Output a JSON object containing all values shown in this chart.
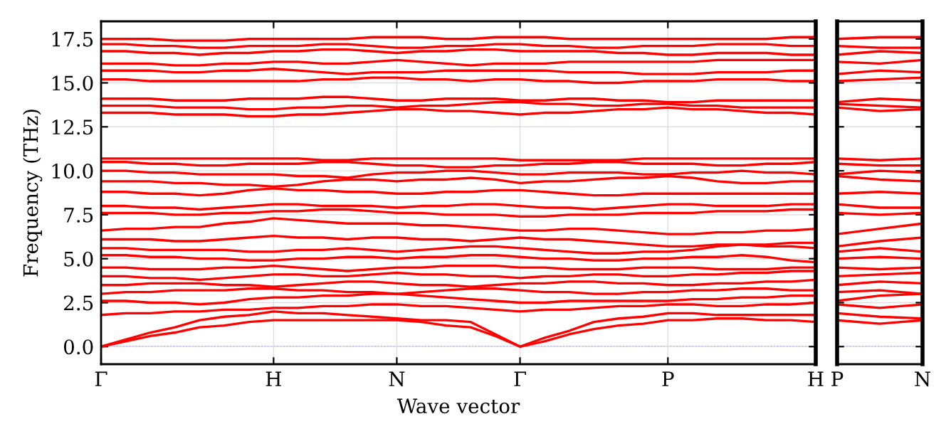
{
  "chart_data": [
    {
      "type": "line",
      "xlabel": "Wave vector",
      "ylabel": "Frequency (THz)",
      "grid": true,
      "line_style": "solid",
      "categories": [
        "Γ",
        null,
        null,
        null,
        null,
        null,
        null,
        "H",
        null,
        null,
        null,
        null,
        "N",
        null,
        null,
        null,
        null,
        "Γ",
        null,
        null,
        null,
        null,
        null,
        "P",
        null,
        null,
        null,
        null,
        null,
        "H"
      ],
      "ylim": [
        -1,
        18.5
      ],
      "yticks": [
        {
          "value": 0,
          "label": "0.0"
        },
        {
          "value": 2.5,
          "label": "2.5"
        },
        {
          "value": 5,
          "label": "5.0"
        },
        {
          "value": 7.5,
          "label": "7.5"
        },
        {
          "value": 10,
          "label": "10.0"
        },
        {
          "value": 12.5,
          "label": "12.5"
        },
        {
          "value": 15,
          "label": "15.0"
        },
        {
          "value": 17.5,
          "label": "17.5"
        }
      ],
      "ref_lines": [
        {
          "axis": "y",
          "value": 0,
          "color": "#0000ff",
          "line_style": "dotted"
        }
      ],
      "series": [
        {
          "color": "#ff0000",
          "values": [
            0,
            0.3,
            0.6,
            0.8,
            1.1,
            1.2,
            1.4,
            1.5,
            1.5,
            1.5,
            1.5,
            1.5,
            1.5,
            1.4,
            1.2,
            1.1,
            0.6,
            0,
            0.3,
            0.7,
            1.0,
            1.2,
            1.3,
            1.5,
            1.5,
            1.6,
            1.6,
            1.5,
            1.5,
            1.4
          ]
        },
        {
          "color": "#ff0000",
          "values": [
            0,
            0.4,
            0.8,
            1.1,
            1.5,
            1.7,
            1.8,
            2.0,
            1.9,
            1.9,
            1.8,
            1.7,
            1.6,
            1.5,
            1.5,
            1.4,
            0.7,
            0,
            0.5,
            0.9,
            1.4,
            1.6,
            1.7,
            1.9,
            1.9,
            1.8,
            1.8,
            1.8,
            1.8,
            1.8
          ]
        },
        {
          "color": "#ff0000",
          "values": [
            1.8,
            1.9,
            1.9,
            2.0,
            2.0,
            2.1,
            2.1,
            2.2,
            2.2,
            2.3,
            2.3,
            2.4,
            2.4,
            2.3,
            2.3,
            2.2,
            2.1,
            2.0,
            2.1,
            2.1,
            2.2,
            2.3,
            2.3,
            2.4,
            2.4,
            2.3,
            2.3,
            2.4,
            2.4,
            2.5
          ]
        },
        {
          "color": "#ff0000",
          "values": [
            2.6,
            2.6,
            2.5,
            2.5,
            2.4,
            2.5,
            2.7,
            2.8,
            2.8,
            2.9,
            2.9,
            3.0,
            3.0,
            2.9,
            2.8,
            2.7,
            2.6,
            2.5,
            2.5,
            2.6,
            2.6,
            2.6,
            2.6,
            2.6,
            2.7,
            2.7,
            2.8,
            2.8,
            2.9,
            2.9
          ]
        },
        {
          "color": "#ff0000",
          "values": [
            3.0,
            3.1,
            3.1,
            3.2,
            3.2,
            3.2,
            3.3,
            3.3,
            3.2,
            3.2,
            3.1,
            3.1,
            3.0,
            3.1,
            3.2,
            3.3,
            3.3,
            3.2,
            3.1,
            3.1,
            3.0,
            3.0,
            3.1,
            3.1,
            3.2,
            3.2,
            3.3,
            3.3,
            3.2,
            3.2
          ]
        },
        {
          "color": "#ff0000",
          "values": [
            3.5,
            3.5,
            3.6,
            3.6,
            3.6,
            3.5,
            3.5,
            3.4,
            3.5,
            3.6,
            3.7,
            3.7,
            3.6,
            3.5,
            3.5,
            3.4,
            3.5,
            3.6,
            3.6,
            3.7,
            3.7,
            3.6,
            3.6,
            3.5,
            3.5,
            3.6,
            3.6,
            3.7,
            3.7,
            3.8
          ]
        },
        {
          "color": "#ff0000",
          "values": [
            4.0,
            4.0,
            3.9,
            3.9,
            3.8,
            3.9,
            4.0,
            4.1,
            4.1,
            4.0,
            4.0,
            4.1,
            4.2,
            4.1,
            4.1,
            4.0,
            4.0,
            3.9,
            4.0,
            4.0,
            4.1,
            4.1,
            4.0,
            4.0,
            4.1,
            4.1,
            4.2,
            4.2,
            4.3,
            4.3
          ]
        },
        {
          "color": "#ff0000",
          "values": [
            4.5,
            4.5,
            4.4,
            4.4,
            4.4,
            4.5,
            4.5,
            4.6,
            4.5,
            4.4,
            4.3,
            4.4,
            4.5,
            4.5,
            4.6,
            4.6,
            4.6,
            4.5,
            4.5,
            4.4,
            4.4,
            4.4,
            4.5,
            4.5,
            4.5,
            4.4,
            4.4,
            4.4,
            4.5,
            4.5
          ]
        },
        {
          "color": "#ff0000",
          "values": [
            5.2,
            5.2,
            5.1,
            5.1,
            5.0,
            5.0,
            4.9,
            4.9,
            5.0,
            5.0,
            5.1,
            5.1,
            5.0,
            5.1,
            5.1,
            5.2,
            5.2,
            5.1,
            5.0,
            5.0,
            4.9,
            4.9,
            5.0,
            5.0,
            5.1,
            5.1,
            5.2,
            5.1,
            4.9,
            4.8
          ]
        },
        {
          "color": "#ff0000",
          "values": [
            5.6,
            5.6,
            5.5,
            5.5,
            5.5,
            5.5,
            5.4,
            5.4,
            5.5,
            5.5,
            5.6,
            5.5,
            5.4,
            5.5,
            5.6,
            5.7,
            5.7,
            5.6,
            5.5,
            5.4,
            5.3,
            5.3,
            5.4,
            5.4,
            5.5,
            5.7,
            5.8,
            5.7,
            5.7,
            5.6
          ]
        },
        {
          "color": "#ff0000",
          "values": [
            6.1,
            6.1,
            6.1,
            6.0,
            6.0,
            6.1,
            6.2,
            6.3,
            6.2,
            6.2,
            6.1,
            6.2,
            6.2,
            6.1,
            6.1,
            6.0,
            6.1,
            6.2,
            6.1,
            6.1,
            6.0,
            5.9,
            5.8,
            5.7,
            5.7,
            5.8,
            5.8,
            5.8,
            5.9,
            5.9
          ]
        },
        {
          "color": "#ff0000",
          "values": [
            6.6,
            6.7,
            6.7,
            6.8,
            6.8,
            7.0,
            7.1,
            7.3,
            7.2,
            7.1,
            7.0,
            7.0,
            7.0,
            6.9,
            6.9,
            6.8,
            6.7,
            6.6,
            6.6,
            6.7,
            6.7,
            6.6,
            6.5,
            6.4,
            6.4,
            6.5,
            6.5,
            6.6,
            6.6,
            6.7
          ]
        },
        {
          "color": "#ff0000",
          "values": [
            7.6,
            7.6,
            7.6,
            7.5,
            7.5,
            7.6,
            7.6,
            7.7,
            7.7,
            7.8,
            7.8,
            7.7,
            7.6,
            7.6,
            7.5,
            7.5,
            7.5,
            7.4,
            7.4,
            7.5,
            7.5,
            7.5,
            7.6,
            7.6,
            7.6,
            7.7,
            7.7,
            7.7,
            7.8,
            7.8
          ]
        },
        {
          "color": "#ff0000",
          "values": [
            8.0,
            8.0,
            7.9,
            7.9,
            7.8,
            7.9,
            8.0,
            8.1,
            8.1,
            8.0,
            8.0,
            8.0,
            7.9,
            8.0,
            8.0,
            8.1,
            8.1,
            8.0,
            7.9,
            7.9,
            7.8,
            7.9,
            8.0,
            8.1,
            8.1,
            8.0,
            8.0,
            8.0,
            8.1,
            8.1
          ]
        },
        {
          "color": "#ff0000",
          "values": [
            8.8,
            8.8,
            8.7,
            8.7,
            8.6,
            8.7,
            8.9,
            9.0,
            8.9,
            8.9,
            8.8,
            8.8,
            8.7,
            8.7,
            8.8,
            8.8,
            8.9,
            8.9,
            8.8,
            8.7,
            8.6,
            8.6,
            8.7,
            8.7,
            8.7,
            8.7,
            8.7,
            8.7,
            8.7,
            8.7
          ]
        },
        {
          "color": "#ff0000",
          "values": [
            9.4,
            9.4,
            9.4,
            9.3,
            9.3,
            9.2,
            9.2,
            9.1,
            9.2,
            9.4,
            9.5,
            9.5,
            9.4,
            9.5,
            9.5,
            9.6,
            9.5,
            9.3,
            9.4,
            9.4,
            9.5,
            9.6,
            9.6,
            9.7,
            9.6,
            9.4,
            9.3,
            9.3,
            9.4,
            9.4
          ]
        },
        {
          "color": "#ff0000",
          "values": [
            10.0,
            10.0,
            9.9,
            9.9,
            9.8,
            9.8,
            9.8,
            9.8,
            9.7,
            9.7,
            9.6,
            9.8,
            9.9,
            9.9,
            10.0,
            10.0,
            9.9,
            9.8,
            9.8,
            9.9,
            9.9,
            9.9,
            9.8,
            9.8,
            9.9,
            9.9,
            10.0,
            9.9,
            9.9,
            9.8
          ]
        },
        {
          "color": "#ff0000",
          "values": [
            10.5,
            10.5,
            10.4,
            10.4,
            10.3,
            10.3,
            10.4,
            10.4,
            10.4,
            10.5,
            10.5,
            10.4,
            10.3,
            10.3,
            10.2,
            10.2,
            10.3,
            10.3,
            10.4,
            10.4,
            10.5,
            10.5,
            10.4,
            10.4,
            10.4,
            10.3,
            10.3,
            10.4,
            10.4,
            10.5
          ]
        },
        {
          "color": "#ff0000",
          "values": [
            10.7,
            10.7,
            10.7,
            10.7,
            10.7,
            10.7,
            10.7,
            10.7,
            10.7,
            10.6,
            10.6,
            10.7,
            10.7,
            10.7,
            10.7,
            10.7,
            10.7,
            10.6,
            10.6,
            10.6,
            10.6,
            10.6,
            10.7,
            10.7,
            10.7,
            10.7,
            10.7,
            10.7,
            10.7,
            10.7
          ]
        },
        {
          "color": "#ff0000",
          "values": [
            13.3,
            13.3,
            13.3,
            13.2,
            13.2,
            13.2,
            13.1,
            13.1,
            13.2,
            13.2,
            13.3,
            13.4,
            13.5,
            13.5,
            13.4,
            13.4,
            13.3,
            13.2,
            13.3,
            13.3,
            13.4,
            13.5,
            13.5,
            13.6,
            13.5,
            13.5,
            13.4,
            13.3,
            13.3,
            13.2
          ]
        },
        {
          "color": "#ff0000",
          "values": [
            13.7,
            13.7,
            13.7,
            13.6,
            13.6,
            13.6,
            13.5,
            13.5,
            13.6,
            13.6,
            13.7,
            13.7,
            13.6,
            13.7,
            13.7,
            13.8,
            13.9,
            13.9,
            13.8,
            13.8,
            13.7,
            13.7,
            13.8,
            13.8,
            13.7,
            13.7,
            13.6,
            13.6,
            13.6,
            13.6
          ]
        },
        {
          "color": "#ff0000",
          "values": [
            14.1,
            14.1,
            14.1,
            14.0,
            14.0,
            14.0,
            14.1,
            14.1,
            14.1,
            14.2,
            14.2,
            14.1,
            14.0,
            14.0,
            14.1,
            14.1,
            14.1,
            14.0,
            14.0,
            14.1,
            14.1,
            14.0,
            14.0,
            13.9,
            13.9,
            14.0,
            14.0,
            14.0,
            14.0,
            14.0
          ]
        },
        {
          "color": "#ff0000",
          "values": [
            15.2,
            15.2,
            15.1,
            15.1,
            15.1,
            15.1,
            15.1,
            15.1,
            15.1,
            15.2,
            15.2,
            15.3,
            15.3,
            15.2,
            15.2,
            15.1,
            15.2,
            15.2,
            15.1,
            15.1,
            15.0,
            15.0,
            15.1,
            15.1,
            15.1,
            15.2,
            15.2,
            15.2,
            15.1,
            15.1
          ]
        },
        {
          "color": "#ff0000",
          "values": [
            15.7,
            15.7,
            15.7,
            15.6,
            15.6,
            15.7,
            15.7,
            15.8,
            15.7,
            15.6,
            15.5,
            15.6,
            15.6,
            15.6,
            15.7,
            15.7,
            15.7,
            15.7,
            15.7,
            15.6,
            15.6,
            15.6,
            15.5,
            15.5,
            15.5,
            15.6,
            15.6,
            15.6,
            15.7,
            15.7
          ]
        },
        {
          "color": "#ff0000",
          "values": [
            16.1,
            16.1,
            16.1,
            16.0,
            16.0,
            16.1,
            16.1,
            16.2,
            16.2,
            16.1,
            16.1,
            16.2,
            16.3,
            16.2,
            16.1,
            16.0,
            16.1,
            16.1,
            16.1,
            16.2,
            16.2,
            16.2,
            16.2,
            16.2,
            16.2,
            16.3,
            16.3,
            16.3,
            16.3,
            16.3
          ]
        },
        {
          "color": "#ff0000",
          "values": [
            16.8,
            16.8,
            16.7,
            16.7,
            16.6,
            16.7,
            16.7,
            16.8,
            16.8,
            16.9,
            16.9,
            16.8,
            16.7,
            16.8,
            16.8,
            16.9,
            16.9,
            16.8,
            16.8,
            16.8,
            16.8,
            16.7,
            16.7,
            16.6,
            16.6,
            16.7,
            16.7,
            16.7,
            16.6,
            16.6
          ]
        },
        {
          "color": "#ff0000",
          "values": [
            17.2,
            17.2,
            17.1,
            17.1,
            17.0,
            17.0,
            17.1,
            17.1,
            17.1,
            17.2,
            17.2,
            17.1,
            17.0,
            17.0,
            17.1,
            17.1,
            17.2,
            17.2,
            17.1,
            17.1,
            17.0,
            17.0,
            17.1,
            17.1,
            17.1,
            17.2,
            17.2,
            17.2,
            17.1,
            17.1
          ]
        },
        {
          "color": "#ff0000",
          "values": [
            17.5,
            17.5,
            17.5,
            17.4,
            17.4,
            17.4,
            17.5,
            17.5,
            17.5,
            17.5,
            17.5,
            17.6,
            17.6,
            17.6,
            17.5,
            17.5,
            17.6,
            17.6,
            17.6,
            17.5,
            17.5,
            17.5,
            17.5,
            17.5,
            17.5,
            17.5,
            17.5,
            17.5,
            17.6,
            17.6
          ]
        }
      ]
    },
    {
      "type": "line",
      "grid": true,
      "line_style": "solid",
      "tick_labels": "x",
      "categories": [
        "P",
        null,
        "N"
      ],
      "ylim": [
        -1,
        18.5
      ],
      "yticks": [
        {
          "value": 0,
          "label": null
        },
        {
          "value": 2.5,
          "label": null
        },
        {
          "value": 5,
          "label": null
        },
        {
          "value": 7.5,
          "label": null
        },
        {
          "value": 10,
          "label": null
        },
        {
          "value": 12.5,
          "label": null
        },
        {
          "value": 15,
          "label": null
        },
        {
          "value": 17.5,
          "label": null
        }
      ],
      "ref_lines": [
        {
          "axis": "y",
          "value": 0,
          "color": "#0000ff",
          "line_style": "dotted"
        }
      ],
      "series": [
        {
          "color": "#ff0000",
          "values": [
            1.5,
            1.3,
            1.5
          ]
        },
        {
          "color": "#ff0000",
          "values": [
            1.9,
            1.7,
            1.6
          ]
        },
        {
          "color": "#ff0000",
          "values": [
            2.4,
            2.2,
            2.4
          ]
        },
        {
          "color": "#ff0000",
          "values": [
            2.6,
            2.9,
            3.0
          ]
        },
        {
          "color": "#ff0000",
          "values": [
            3.1,
            3.2,
            3.0
          ]
        },
        {
          "color": "#ff0000",
          "values": [
            3.5,
            3.7,
            3.6
          ]
        },
        {
          "color": "#ff0000",
          "values": [
            4.0,
            4.1,
            4.2
          ]
        },
        {
          "color": "#ff0000",
          "values": [
            4.5,
            4.4,
            4.5
          ]
        },
        {
          "color": "#ff0000",
          "values": [
            5.0,
            5.1,
            5.0
          ]
        },
        {
          "color": "#ff0000",
          "values": [
            5.4,
            5.6,
            5.4
          ]
        },
        {
          "color": "#ff0000",
          "values": [
            5.7,
            6.0,
            6.2
          ]
        },
        {
          "color": "#ff0000",
          "values": [
            6.4,
            6.7,
            7.0
          ]
        },
        {
          "color": "#ff0000",
          "values": [
            7.6,
            7.5,
            7.6
          ]
        },
        {
          "color": "#ff0000",
          "values": [
            8.1,
            7.9,
            7.9
          ]
        },
        {
          "color": "#ff0000",
          "values": [
            8.7,
            8.8,
            8.7
          ]
        },
        {
          "color": "#ff0000",
          "values": [
            9.7,
            9.5,
            9.4
          ]
        },
        {
          "color": "#ff0000",
          "values": [
            9.8,
            10.0,
            9.9
          ]
        },
        {
          "color": "#ff0000",
          "values": [
            10.4,
            10.3,
            10.3
          ]
        },
        {
          "color": "#ff0000",
          "values": [
            10.7,
            10.6,
            10.7
          ]
        },
        {
          "color": "#ff0000",
          "values": [
            13.6,
            13.4,
            13.5
          ]
        },
        {
          "color": "#ff0000",
          "values": [
            13.8,
            13.7,
            13.6
          ]
        },
        {
          "color": "#ff0000",
          "values": [
            13.9,
            14.1,
            14.0
          ]
        },
        {
          "color": "#ff0000",
          "values": [
            15.1,
            15.2,
            15.3
          ]
        },
        {
          "color": "#ff0000",
          "values": [
            15.5,
            15.7,
            15.6
          ]
        },
        {
          "color": "#ff0000",
          "values": [
            16.2,
            16.1,
            16.3
          ]
        },
        {
          "color": "#ff0000",
          "values": [
            16.6,
            16.8,
            16.7
          ]
        },
        {
          "color": "#ff0000",
          "values": [
            17.1,
            17.0,
            17.0
          ]
        },
        {
          "color": "#ff0000",
          "values": [
            17.5,
            17.6,
            17.6
          ]
        }
      ]
    }
  ]
}
